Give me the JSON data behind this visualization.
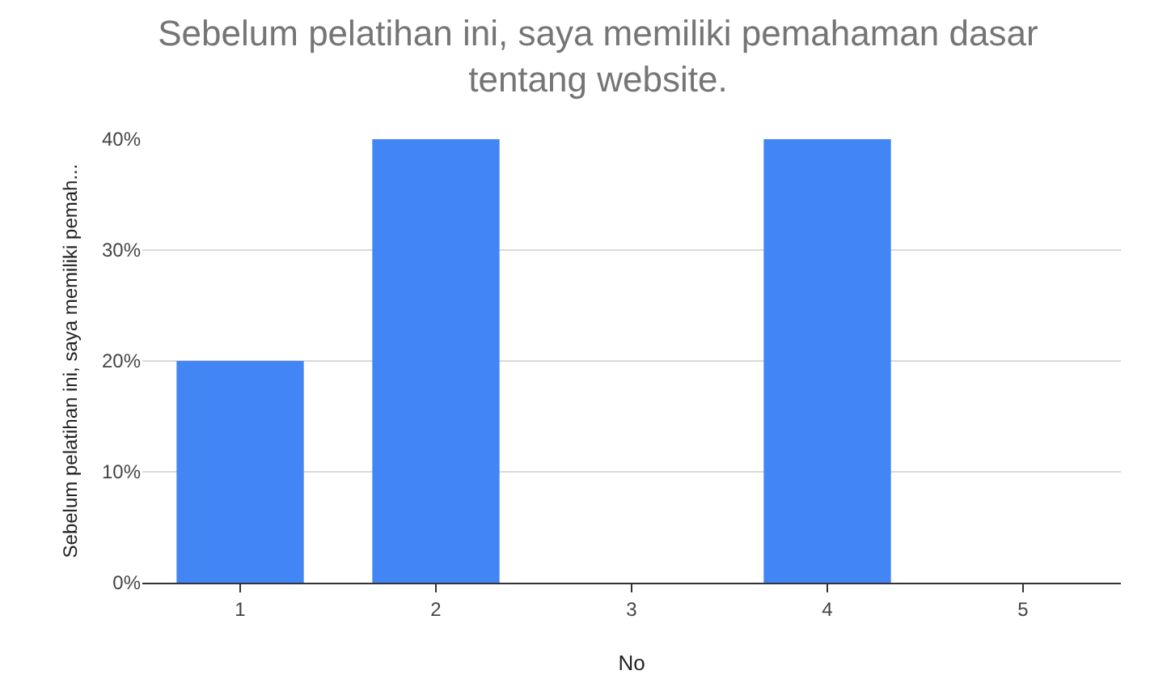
{
  "chart_data": {
    "type": "bar",
    "title": "Sebelum pelatihan ini, saya memiliki pemahaman dasar\ntentang website.",
    "xlabel": "No",
    "ylabel": "Sebelum pelatihan ini, saya memiliki pemah...",
    "categories": [
      "1",
      "2",
      "3",
      "4",
      "5"
    ],
    "values": [
      20,
      40,
      0,
      40,
      0
    ],
    "color": "#4285f4",
    "ylim": [
      0,
      40
    ],
    "yticks": [
      {
        "value": 0,
        "label": "0%"
      },
      {
        "value": 10,
        "label": "10%"
      },
      {
        "value": 20,
        "label": "20%"
      },
      {
        "value": 30,
        "label": "30%"
      },
      {
        "value": 40,
        "label": "40%"
      }
    ],
    "grid": "y"
  }
}
